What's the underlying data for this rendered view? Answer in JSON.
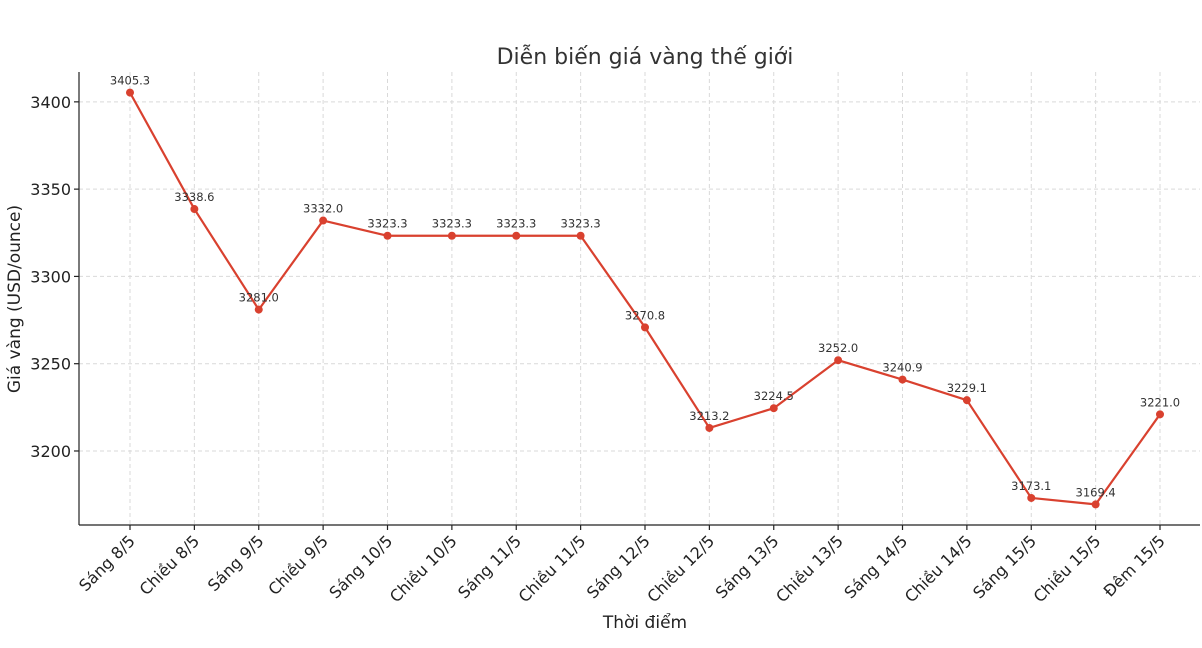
{
  "chart_data": {
    "type": "line",
    "title": "Diễn biến giá vàng thế giới",
    "xlabel": "Thời điểm",
    "ylabel": "Giá vàng (USD/ounce)",
    "categories": [
      "Sáng 8/5",
      "Chiều 8/5",
      "Sáng 9/5",
      "Chiều 9/5",
      "Sáng 10/5",
      "Chiều 10/5",
      "Sáng 11/5",
      "Chiều 11/5",
      "Sáng 12/5",
      "Chiều 12/5",
      "Sáng 13/5",
      "Chiều 13/5",
      "Sáng 14/5",
      "Chiều 14/5",
      "Sáng 15/5",
      "Chiều 15/5",
      "Đêm 15/5"
    ],
    "series": [
      {
        "values": [
          3405.3,
          3338.6,
          3281.0,
          3332.0,
          3323.3,
          3323.3,
          3323.3,
          3323.3,
          3270.8,
          3213.2,
          3224.5,
          3252.0,
          3240.9,
          3229.1,
          3173.1,
          3169.4,
          3221.0
        ],
        "color": "#d9412f"
      }
    ],
    "data_labels": [
      "3405.3",
      "3338.6",
      "3281.0",
      "3332.0",
      "3323.3",
      "3323.3",
      "3323.3",
      "3323.3",
      "3270.8",
      "3213.2",
      "3224.5",
      "3252.0",
      "3240.9",
      "3229.1",
      "3173.1",
      "3169.4",
      "3221.0"
    ],
    "yticks": [
      "3200",
      "3250",
      "3300",
      "3350",
      "3400"
    ],
    "ylim": [
      3157.6,
      3417.1
    ],
    "grid": true
  }
}
